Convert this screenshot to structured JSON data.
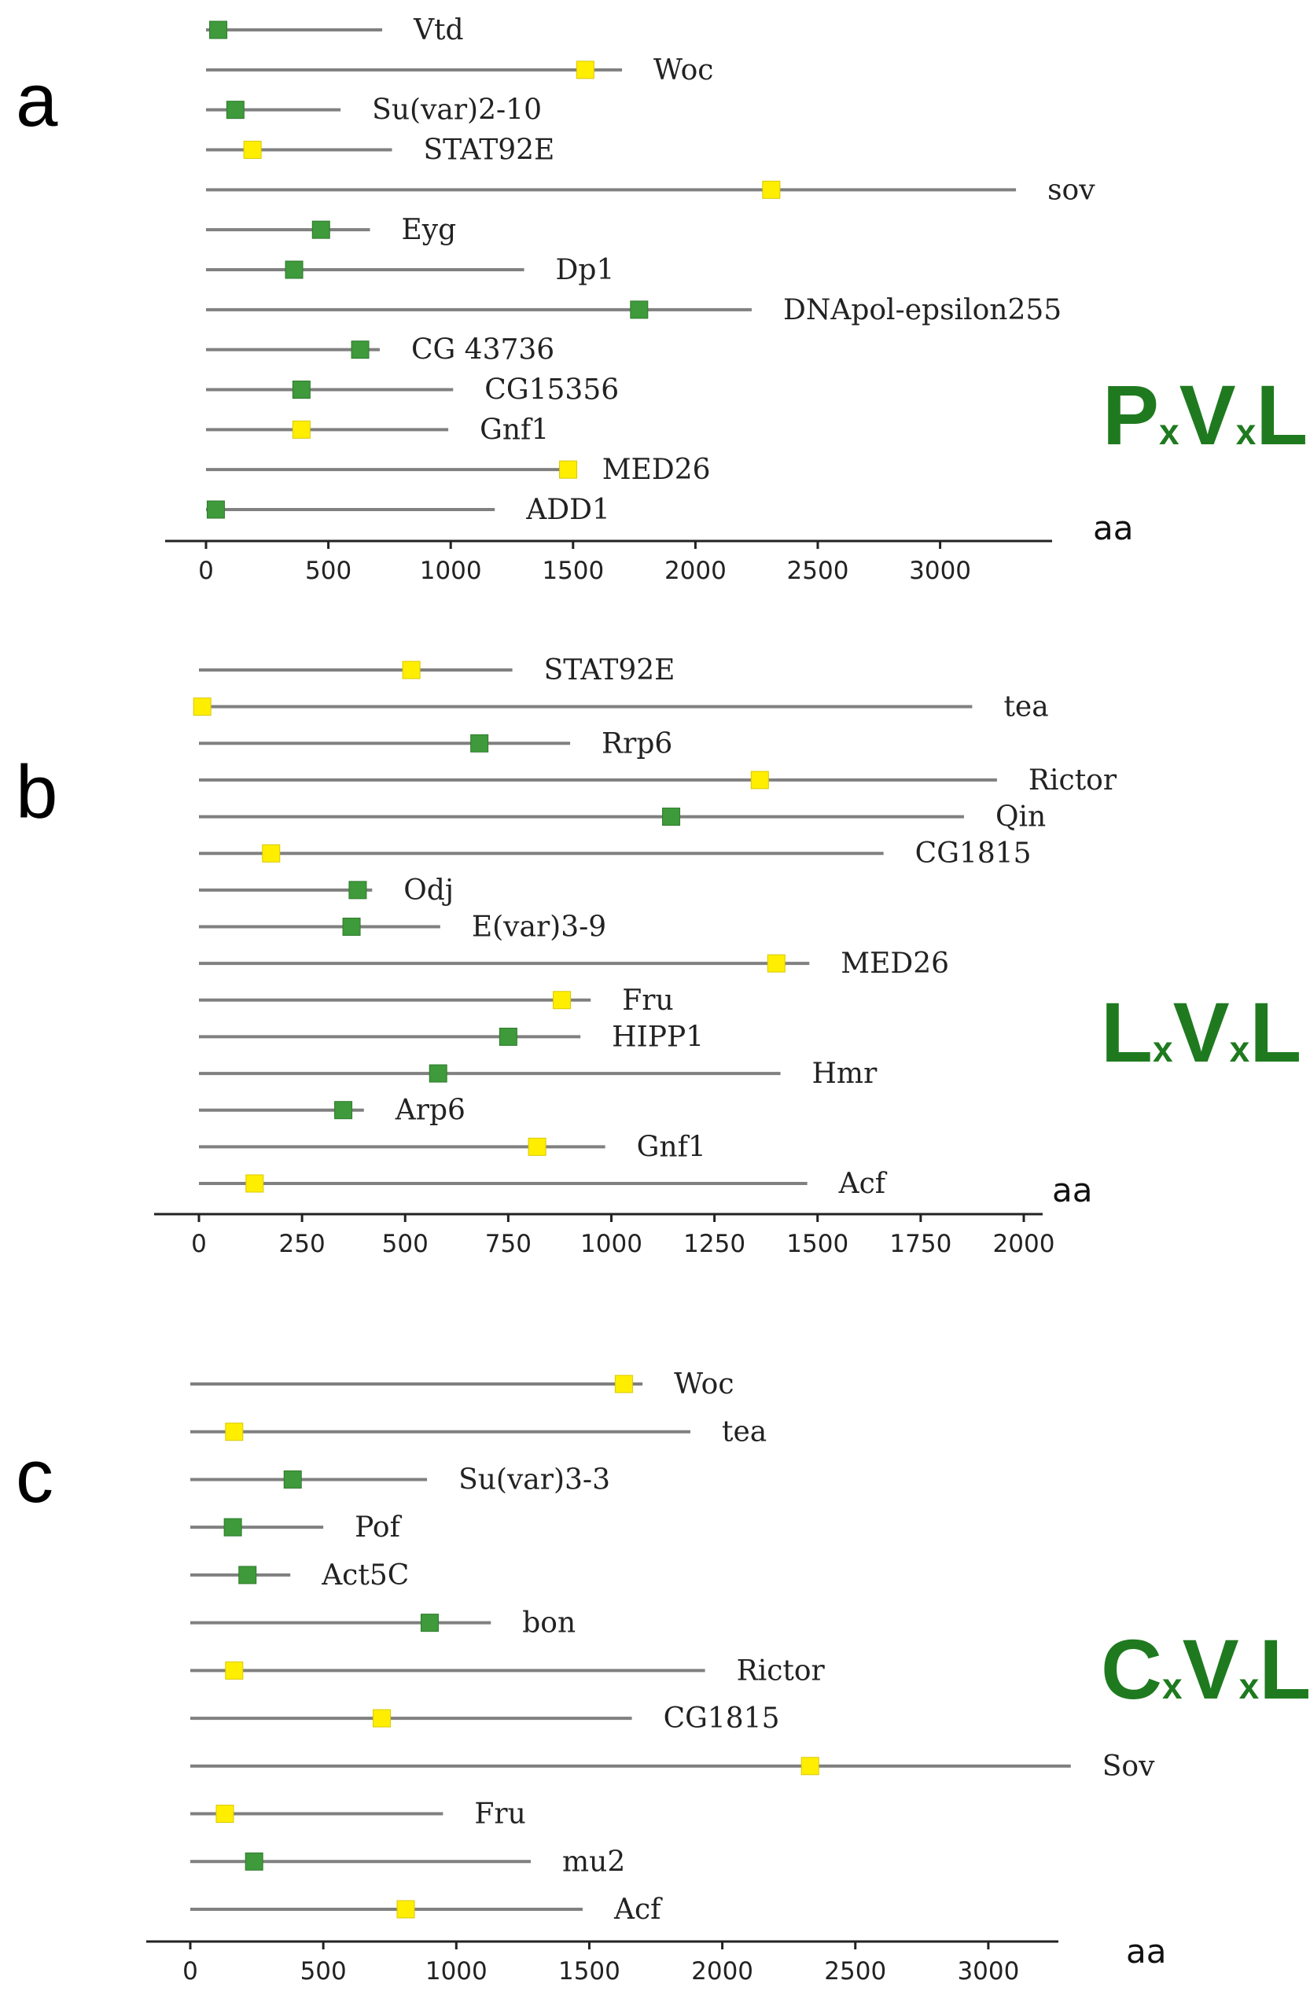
{
  "colors": {
    "green_marker": "#3e9a3a",
    "yellow_marker": "#ffee00",
    "motif_text": "#1f7a1f",
    "line": "#808080"
  },
  "chart_data": [
    {
      "type": "scatter",
      "panel": "a",
      "motif": {
        "first": "P",
        "mid1": "x",
        "second": "V",
        "mid2": "x",
        "third": "L"
      },
      "xlabel": "aa",
      "xticks": [
        0,
        500,
        1000,
        1500,
        2000,
        2500,
        3000
      ],
      "xlim": [
        -150,
        3450
      ],
      "proteins": [
        {
          "name": "Vtd",
          "length": 720,
          "site": 50,
          "marker": "green"
        },
        {
          "name": "Woc",
          "length": 1700,
          "site": 1550,
          "marker": "yellow"
        },
        {
          "name": "Su(var)2-10",
          "length": 550,
          "site": 120,
          "marker": "green"
        },
        {
          "name": "STAT92E",
          "length": 760,
          "site": 190,
          "marker": "yellow"
        },
        {
          "name": "sov",
          "length": 3310,
          "site": 2310,
          "marker": "yellow"
        },
        {
          "name": "Eyg",
          "length": 670,
          "site": 470,
          "marker": "green"
        },
        {
          "name": "Dp1",
          "length": 1300,
          "site": 360,
          "marker": "green"
        },
        {
          "name": "DNApol-epsilon255",
          "length": 2230,
          "site": 1770,
          "marker": "green"
        },
        {
          "name": "CG 43736",
          "length": 710,
          "site": 630,
          "marker": "green"
        },
        {
          "name": "CG15356",
          "length": 1010,
          "site": 390,
          "marker": "green"
        },
        {
          "name": "Gnf1",
          "length": 990,
          "site": 390,
          "marker": "yellow"
        },
        {
          "name": "MED26",
          "length": 1490,
          "site": 1480,
          "marker": "yellow"
        },
        {
          "name": "ADD1",
          "length": 1180,
          "site": 40,
          "marker": "green"
        }
      ]
    },
    {
      "type": "scatter",
      "panel": "b",
      "motif": {
        "first": "L",
        "mid1": "x",
        "second": "V",
        "mid2": "x",
        "third": "L"
      },
      "xlabel": "aa",
      "xticks": [
        0,
        250,
        500,
        750,
        1000,
        1250,
        1500,
        1750,
        2000
      ],
      "xlim": [
        -100,
        2040
      ],
      "proteins": [
        {
          "name": "STAT92E",
          "length": 760,
          "site": 515,
          "marker": "yellow"
        },
        {
          "name": "tea",
          "length": 1875,
          "site": 8,
          "marker": "yellow"
        },
        {
          "name": "Rrp6",
          "length": 900,
          "site": 680,
          "marker": "green"
        },
        {
          "name": "Rictor",
          "length": 1935,
          "site": 1360,
          "marker": "yellow"
        },
        {
          "name": "Qin",
          "length": 1855,
          "site": 1145,
          "marker": "green"
        },
        {
          "name": "CG1815",
          "length": 1660,
          "site": 175,
          "marker": "yellow"
        },
        {
          "name": "Odj",
          "length": 420,
          "site": 385,
          "marker": "green"
        },
        {
          "name": "E(var)3-9",
          "length": 585,
          "site": 370,
          "marker": "green"
        },
        {
          "name": "MED26",
          "length": 1480,
          "site": 1400,
          "marker": "yellow"
        },
        {
          "name": "Fru",
          "length": 950,
          "site": 880,
          "marker": "yellow"
        },
        {
          "name": "HIPP1",
          "length": 925,
          "site": 750,
          "marker": "green"
        },
        {
          "name": "Hmr",
          "length": 1410,
          "site": 580,
          "marker": "green"
        },
        {
          "name": "Arp6",
          "length": 400,
          "site": 350,
          "marker": "green"
        },
        {
          "name": "Gnf1",
          "length": 985,
          "site": 820,
          "marker": "yellow"
        },
        {
          "name": "Acf",
          "length": 1475,
          "site": 135,
          "marker": "yellow"
        }
      ]
    },
    {
      "type": "scatter",
      "panel": "c",
      "motif": {
        "first": "C",
        "mid1": "x",
        "second": "V",
        "mid2": "x",
        "third": "L"
      },
      "xlabel": "aa",
      "xticks": [
        0,
        500,
        1000,
        1500,
        2000,
        2500,
        3000
      ],
      "xlim": [
        -150,
        3450
      ],
      "proteins": [
        {
          "name": "Woc",
          "length": 1700,
          "site": 1630,
          "marker": "yellow"
        },
        {
          "name": "tea",
          "length": 1880,
          "site": 165,
          "marker": "yellow"
        },
        {
          "name": "Su(var)3-3",
          "length": 890,
          "site": 385,
          "marker": "green"
        },
        {
          "name": "Pof",
          "length": 500,
          "site": 160,
          "marker": "green"
        },
        {
          "name": "Act5C",
          "length": 376,
          "site": 215,
          "marker": "green"
        },
        {
          "name": "bon",
          "length": 1130,
          "site": 900,
          "marker": "green"
        },
        {
          "name": "Rictor",
          "length": 1935,
          "site": 165,
          "marker": "yellow"
        },
        {
          "name": "CG1815",
          "length": 1660,
          "site": 720,
          "marker": "yellow"
        },
        {
          "name": "Sov",
          "length": 3310,
          "site": 2330,
          "marker": "yellow"
        },
        {
          "name": "Fru",
          "length": 950,
          "site": 130,
          "marker": "yellow"
        },
        {
          "name": "mu2",
          "length": 1280,
          "site": 240,
          "marker": "green"
        },
        {
          "name": "Acf",
          "length": 1475,
          "site": 810,
          "marker": "yellow"
        }
      ]
    }
  ]
}
